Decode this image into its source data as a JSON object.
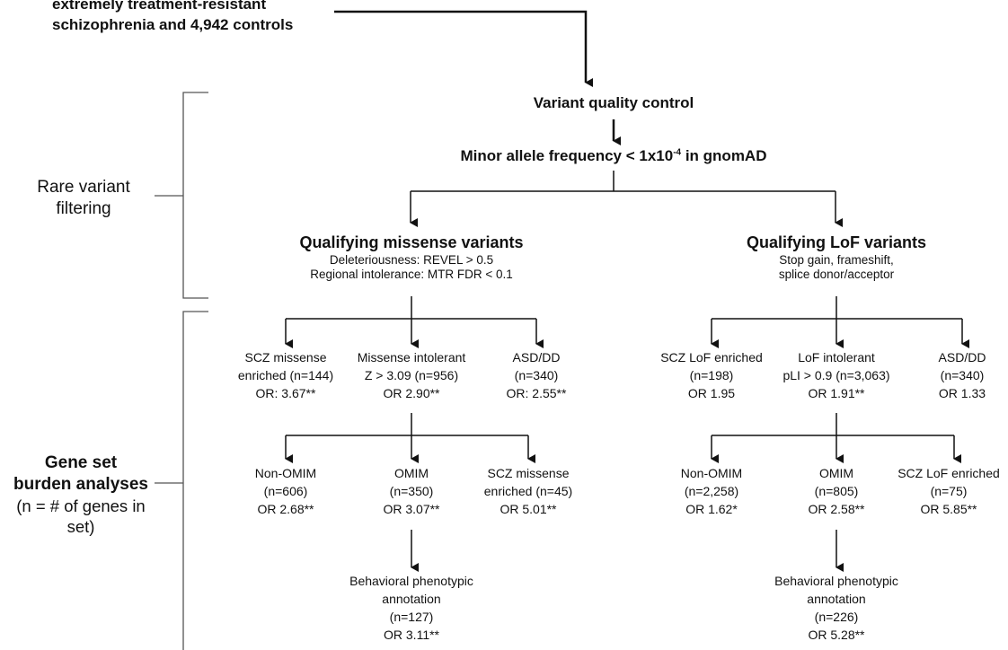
{
  "cohort": {
    "line1": "extremely treatment-resistant",
    "line2": "schizophrenia and 4,942 controls"
  },
  "qc": {
    "label": "Variant quality control"
  },
  "maf": {
    "prefix": "Minor allele frequency < 1x10",
    "exponent": "-4",
    "suffix": " in gnomAD"
  },
  "brackets": {
    "rare": {
      "line1": "Rare variant",
      "line2": "filtering"
    },
    "burden": {
      "line1": "Gene set",
      "line2": "burden analyses",
      "line3": "(n = # of genes in",
      "line4": "set)"
    }
  },
  "missense": {
    "title": "Qualifying missense variants",
    "desc1": "Deleteriousness: REVEL > 0.5",
    "desc2": "Regional intolerance: MTR FDR < 0.1",
    "level1": [
      {
        "line1": "SCZ missense",
        "line2": "enriched (n=144)",
        "line3": "OR: 3.67**"
      },
      {
        "line1": "Missense intolerant",
        "line2": "Z > 3.09 (n=956)",
        "line3": "OR 2.90**"
      },
      {
        "line1": "ASD/DD",
        "line2": "(n=340)",
        "line3": "OR: 2.55**"
      }
    ],
    "level2": [
      {
        "line1": "Non-OMIM",
        "line2": "(n=606)",
        "line3": "OR 2.68**"
      },
      {
        "line1": "OMIM",
        "line2": "(n=350)",
        "line3": "OR 3.07**"
      },
      {
        "line1": "SCZ missense",
        "line2": "enriched (n=45)",
        "line3": "OR 5.01**"
      }
    ],
    "level3": {
      "line1": "Behavioral phenotypic",
      "line2": "annotation",
      "line3": "(n=127)",
      "line4": "OR 3.11**"
    }
  },
  "lof": {
    "title": "Qualifying LoF variants",
    "desc1": "Stop gain, frameshift,",
    "desc2": "splice donor/acceptor",
    "level1": [
      {
        "line1": "SCZ LoF enriched",
        "line2": "(n=198)",
        "line3": "OR 1.95"
      },
      {
        "line1": "LoF intolerant",
        "line2": "pLI > 0.9 (n=3,063)",
        "line3": "OR 1.91**"
      },
      {
        "line1": "ASD/DD",
        "line2": "(n=340)",
        "line3": "OR 1.33"
      }
    ],
    "level2": [
      {
        "line1": "Non-OMIM",
        "line2": "(n=2,258)",
        "line3": "OR 1.62*"
      },
      {
        "line1": "OMIM",
        "line2": "(n=805)",
        "line3": "OR 2.58**"
      },
      {
        "line1": "SCZ LoF enriched",
        "line2": "(n=75)",
        "line3": "OR 5.85**"
      }
    ],
    "level3": {
      "line1": "Behavioral phenotypic",
      "line2": "annotation",
      "line3": "(n=226)",
      "line4": "OR 5.28**"
    }
  },
  "colors": {
    "line": "#111111",
    "bracket": "#555555"
  }
}
